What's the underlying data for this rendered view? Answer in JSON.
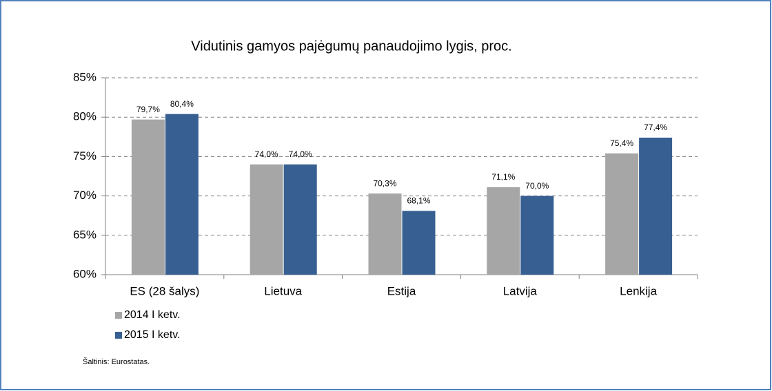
{
  "chart_data": {
    "type": "bar",
    "title": "Vidutinis gamyos pajėgumų panaudojimo lygis, proc.",
    "categories": [
      "ES (28 šalys)",
      "Lietuva",
      "Estija",
      "Latvija",
      "Lenkija"
    ],
    "series": [
      {
        "name": "2014 I ketv.",
        "color": "#a6a6a6",
        "values": [
          79.7,
          74.0,
          70.3,
          71.1,
          75.4
        ],
        "value_labels": [
          "79,7%",
          "74,0%",
          "70,3%",
          "71,1%",
          "75,4%"
        ]
      },
      {
        "name": "2015 I ketv.",
        "color": "#375f91",
        "values": [
          80.4,
          74.0,
          68.1,
          70.0,
          77.4
        ],
        "value_labels": [
          "80,4%",
          "74,0%",
          "68,1%",
          "70,0%",
          "77,4%"
        ]
      }
    ],
    "ylim": [
      60,
      85
    ],
    "yticks": [
      {
        "value": 60,
        "label": "60%"
      },
      {
        "value": 65,
        "label": "65%"
      },
      {
        "value": 70,
        "label": "70%"
      },
      {
        "value": 75,
        "label": "75%"
      },
      {
        "value": 80,
        "label": "80%"
      },
      {
        "value": 85,
        "label": "85%"
      }
    ],
    "grid": true,
    "legend": "bottom-left",
    "source": "Šaltinis: Eurostatas."
  }
}
